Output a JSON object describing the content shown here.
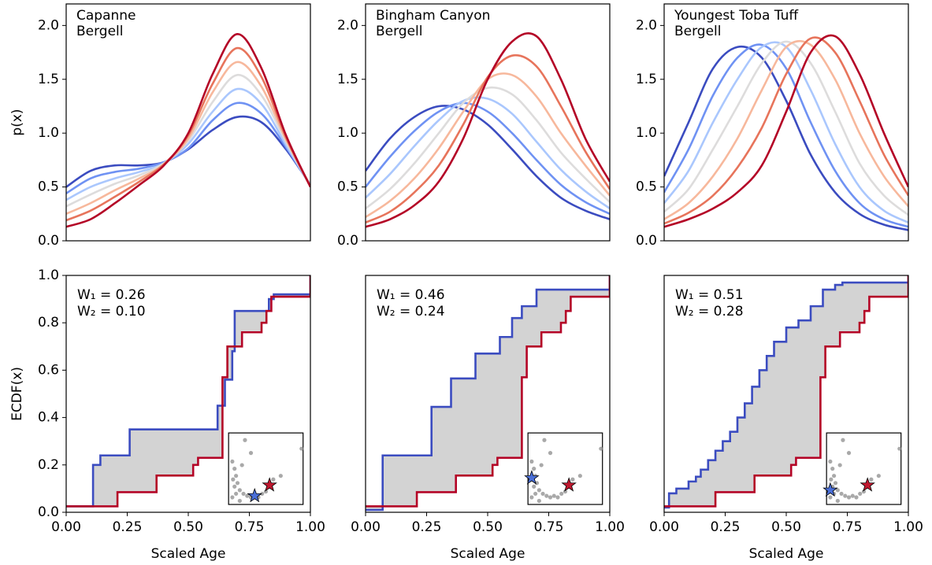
{
  "chart_data": [
    {
      "type": "line",
      "ylabel": "p(x)",
      "xlim": [
        0,
        1
      ],
      "ylim": [
        0,
        2.2
      ],
      "yticks": [
        {
          "value": 0,
          "label": "0.0"
        },
        {
          "value": 0.5,
          "label": "0.5"
        },
        {
          "value": 1,
          "label": "1.0"
        },
        {
          "value": 1.5,
          "label": "1.5"
        },
        {
          "value": 2,
          "label": "2.0"
        }
      ],
      "legend": [
        {
          "name": "Capanne",
          "color": "#3b4cc0"
        },
        {
          "name": "Bergell",
          "color": "#b40426"
        }
      ],
      "x": [
        0,
        0.1,
        0.2,
        0.3,
        0.4,
        0.5,
        0.6,
        0.7,
        0.8,
        0.9,
        1.0
      ],
      "series": [
        {
          "color": "#3b4cc0",
          "values": [
            0.5,
            0.65,
            0.7,
            0.7,
            0.73,
            0.85,
            1.03,
            1.15,
            1.1,
            0.85,
            0.52
          ]
        },
        {
          "color": "#6f92f3",
          "values": [
            0.44,
            0.58,
            0.64,
            0.67,
            0.73,
            0.86,
            1.12,
            1.28,
            1.18,
            0.87,
            0.52
          ]
        },
        {
          "color": "#aac7fd",
          "values": [
            0.38,
            0.5,
            0.58,
            0.64,
            0.72,
            0.9,
            1.2,
            1.41,
            1.27,
            0.89,
            0.51
          ]
        },
        {
          "color": "#dddcdc",
          "values": [
            0.32,
            0.43,
            0.53,
            0.61,
            0.72,
            0.93,
            1.29,
            1.54,
            1.35,
            0.92,
            0.51
          ]
        },
        {
          "color": "#f7b89c",
          "values": [
            0.25,
            0.35,
            0.47,
            0.58,
            0.71,
            0.95,
            1.38,
            1.66,
            1.43,
            0.94,
            0.51
          ]
        },
        {
          "color": "#e7745b",
          "values": [
            0.19,
            0.28,
            0.41,
            0.55,
            0.71,
            0.98,
            1.46,
            1.79,
            1.52,
            0.96,
            0.5
          ]
        },
        {
          "color": "#b40426",
          "values": [
            0.13,
            0.2,
            0.35,
            0.52,
            0.7,
            1.0,
            1.55,
            1.92,
            1.6,
            0.98,
            0.5
          ]
        }
      ]
    },
    {
      "type": "line",
      "xlim": [
        0,
        1
      ],
      "ylim": [
        0,
        2.2
      ],
      "yticks": [
        {
          "value": 0,
          "label": "0.0"
        },
        {
          "value": 0.5,
          "label": "0.5"
        },
        {
          "value": 1,
          "label": "1.0"
        },
        {
          "value": 1.5,
          "label": "1.5"
        },
        {
          "value": 2,
          "label": "2.0"
        }
      ],
      "legend": [
        {
          "name": "Bingham Canyon",
          "color": "#3b4cc0"
        },
        {
          "name": "Bergell",
          "color": "#b40426"
        }
      ],
      "x": [
        0,
        0.1,
        0.2,
        0.3,
        0.4,
        0.5,
        0.6,
        0.7,
        0.8,
        0.9,
        1.0
      ],
      "series": [
        {
          "color": "#3b4cc0",
          "values": [
            0.65,
            0.95,
            1.15,
            1.25,
            1.22,
            1.08,
            0.85,
            0.6,
            0.4,
            0.28,
            0.2
          ]
        },
        {
          "color": "#6f92f3",
          "values": [
            0.5,
            0.78,
            1.02,
            1.2,
            1.28,
            1.2,
            1.0,
            0.75,
            0.52,
            0.36,
            0.25
          ]
        },
        {
          "color": "#aac7fd",
          "values": [
            0.4,
            0.62,
            0.88,
            1.12,
            1.3,
            1.32,
            1.18,
            0.92,
            0.66,
            0.46,
            0.3
          ]
        },
        {
          "color": "#dddcdc",
          "values": [
            0.3,
            0.48,
            0.72,
            1.0,
            1.28,
            1.42,
            1.36,
            1.12,
            0.82,
            0.58,
            0.36
          ]
        },
        {
          "color": "#f7b89c",
          "values": [
            0.22,
            0.37,
            0.58,
            0.86,
            1.2,
            1.5,
            1.54,
            1.34,
            1.0,
            0.7,
            0.42
          ]
        },
        {
          "color": "#e7745b",
          "values": [
            0.17,
            0.27,
            0.45,
            0.7,
            1.08,
            1.52,
            1.72,
            1.62,
            1.25,
            0.83,
            0.48
          ]
        },
        {
          "color": "#b40426",
          "values": [
            0.13,
            0.2,
            0.33,
            0.55,
            0.95,
            1.5,
            1.85,
            1.9,
            1.5,
            0.95,
            0.55
          ]
        }
      ]
    },
    {
      "type": "line",
      "xlim": [
        0,
        1
      ],
      "ylim": [
        0,
        2.2
      ],
      "yticks": [
        {
          "value": 0,
          "label": "0.0"
        },
        {
          "value": 0.5,
          "label": "0.5"
        },
        {
          "value": 1,
          "label": "1.0"
        },
        {
          "value": 1.5,
          "label": "1.5"
        },
        {
          "value": 2,
          "label": "2.0"
        }
      ],
      "legend": [
        {
          "name": "Youngest Toba Tuff",
          "color": "#3b4cc0"
        },
        {
          "name": "Bergell",
          "color": "#b40426"
        }
      ],
      "x": [
        0,
        0.1,
        0.2,
        0.3,
        0.4,
        0.5,
        0.6,
        0.7,
        0.8,
        0.9,
        1.0
      ],
      "series": [
        {
          "color": "#3b4cc0",
          "values": [
            0.6,
            1.1,
            1.6,
            1.8,
            1.7,
            1.3,
            0.8,
            0.45,
            0.25,
            0.15,
            0.1
          ]
        },
        {
          "color": "#6f92f3",
          "values": [
            0.45,
            0.85,
            1.35,
            1.7,
            1.82,
            1.6,
            1.1,
            0.65,
            0.35,
            0.2,
            0.13
          ]
        },
        {
          "color": "#aac7fd",
          "values": [
            0.35,
            0.65,
            1.1,
            1.5,
            1.8,
            1.8,
            1.4,
            0.9,
            0.5,
            0.28,
            0.17
          ]
        },
        {
          "color": "#dddcdc",
          "values": [
            0.27,
            0.48,
            0.85,
            1.25,
            1.65,
            1.85,
            1.65,
            1.2,
            0.72,
            0.42,
            0.24
          ]
        },
        {
          "color": "#f7b89c",
          "values": [
            0.2,
            0.35,
            0.6,
            0.95,
            1.4,
            1.8,
            1.82,
            1.5,
            1.0,
            0.6,
            0.32
          ]
        },
        {
          "color": "#e7745b",
          "values": [
            0.16,
            0.26,
            0.42,
            0.68,
            1.05,
            1.55,
            1.88,
            1.75,
            1.3,
            0.8,
            0.42
          ]
        },
        {
          "color": "#b40426",
          "values": [
            0.13,
            0.2,
            0.3,
            0.45,
            0.7,
            1.2,
            1.75,
            1.9,
            1.55,
            1.0,
            0.5
          ]
        }
      ]
    },
    {
      "type": "step",
      "ylabel": "ECDF(x)",
      "xlabel": "Scaled Age",
      "xlim": [
        0,
        1
      ],
      "ylim": [
        0,
        1
      ],
      "xticks": [
        {
          "value": 0,
          "label": "0.00"
        },
        {
          "value": 0.25,
          "label": "0.25"
        },
        {
          "value": 0.5,
          "label": "0.50"
        },
        {
          "value": 0.75,
          "label": "0.75"
        },
        {
          "value": 1,
          "label": "1.00"
        }
      ],
      "yticks": [
        {
          "value": 0,
          "label": "0.0"
        },
        {
          "value": 0.2,
          "label": "0.2"
        },
        {
          "value": 0.4,
          "label": "0.4"
        },
        {
          "value": 0.6,
          "label": "0.6"
        },
        {
          "value": 0.8,
          "label": "0.8"
        },
        {
          "value": 1,
          "label": "1.0"
        }
      ],
      "annotations": [
        "W₁ = 0.26",
        "W₂ = 0.10"
      ],
      "fill_color": "#d3d3d3",
      "series": [
        {
          "color": "#3b4cc0",
          "x": [
            0,
            0.11,
            0.14,
            0.26,
            0.62,
            0.65,
            0.68,
            0.69,
            0.83,
            0.85,
            1.0
          ],
          "values": [
            0.025,
            0.2,
            0.24,
            0.35,
            0.45,
            0.56,
            0.68,
            0.85,
            0.9,
            0.92,
            1.0
          ]
        },
        {
          "color": "#b40426",
          "x": [
            0,
            0.21,
            0.37,
            0.52,
            0.54,
            0.64,
            0.66,
            0.72,
            0.8,
            0.82,
            0.84,
            1.0
          ],
          "values": [
            0.025,
            0.085,
            0.155,
            0.2,
            0.23,
            0.57,
            0.7,
            0.76,
            0.8,
            0.85,
            0.91,
            1.0
          ]
        }
      ],
      "inset": {
        "xlim": [
          0,
          1
        ],
        "ylim": [
          0,
          1
        ],
        "color": "#8c8c8c",
        "x": [
          0.05,
          0.08,
          0.1,
          0.06,
          0.12,
          0.08,
          0.15,
          0.1,
          0.2,
          0.25,
          0.3,
          0.35,
          0.4,
          0.45,
          0.5,
          0.55,
          0.6,
          0.7,
          0.98,
          0.22,
          0.3,
          0.18,
          0.05,
          0.15
        ],
        "y": [
          0.6,
          0.5,
          0.4,
          0.35,
          0.3,
          0.25,
          0.2,
          0.15,
          0.15,
          0.12,
          0.1,
          0.12,
          0.1,
          0.15,
          0.18,
          0.25,
          0.35,
          0.4,
          0.78,
          0.9,
          0.72,
          0.55,
          0.1,
          0.05
        ],
        "stars": [
          {
            "x": 0.35,
            "y": 0.12,
            "color": "#4a6fd8"
          },
          {
            "x": 0.55,
            "y": 0.27,
            "color": "#c0182f"
          }
        ]
      }
    },
    {
      "type": "step",
      "xlabel": "Scaled Age",
      "xlim": [
        0,
        1
      ],
      "ylim": [
        0,
        1
      ],
      "xticks": [
        {
          "value": 0,
          "label": "0.00"
        },
        {
          "value": 0.25,
          "label": "0.25"
        },
        {
          "value": 0.5,
          "label": "0.50"
        },
        {
          "value": 0.75,
          "label": "0.75"
        },
        {
          "value": 1,
          "label": "1.00"
        }
      ],
      "annotations": [
        "W₁ = 0.46",
        "W₂ = 0.24"
      ],
      "fill_color": "#d3d3d3",
      "series": [
        {
          "color": "#3b4cc0",
          "x": [
            0,
            0.07,
            0.27,
            0.35,
            0.45,
            0.55,
            0.6,
            0.64,
            0.7,
            1.0
          ],
          "values": [
            0.01,
            0.24,
            0.445,
            0.565,
            0.67,
            0.74,
            0.82,
            0.87,
            0.94,
            1.0
          ]
        },
        {
          "color": "#b40426",
          "x": [
            0,
            0.21,
            0.37,
            0.52,
            0.54,
            0.64,
            0.66,
            0.72,
            0.8,
            0.82,
            0.84,
            1.0
          ],
          "values": [
            0.025,
            0.085,
            0.155,
            0.2,
            0.23,
            0.57,
            0.7,
            0.76,
            0.8,
            0.85,
            0.91,
            1.0
          ]
        }
      ],
      "inset": {
        "xlim": [
          0,
          1
        ],
        "ylim": [
          0,
          1
        ],
        "color": "#8c8c8c",
        "x": [
          0.05,
          0.08,
          0.1,
          0.06,
          0.12,
          0.08,
          0.15,
          0.1,
          0.2,
          0.25,
          0.3,
          0.35,
          0.4,
          0.45,
          0.5,
          0.55,
          0.6,
          0.7,
          0.98,
          0.22,
          0.3,
          0.18,
          0.05,
          0.15
        ],
        "y": [
          0.6,
          0.5,
          0.4,
          0.35,
          0.3,
          0.25,
          0.2,
          0.15,
          0.15,
          0.12,
          0.1,
          0.12,
          0.1,
          0.15,
          0.18,
          0.25,
          0.35,
          0.4,
          0.78,
          0.9,
          0.72,
          0.55,
          0.1,
          0.05
        ],
        "stars": [
          {
            "x": 0.05,
            "y": 0.37,
            "color": "#4a6fd8"
          },
          {
            "x": 0.55,
            "y": 0.27,
            "color": "#c0182f"
          }
        ]
      }
    },
    {
      "type": "step",
      "xlabel": "Scaled Age",
      "xlim": [
        0,
        1
      ],
      "ylim": [
        0,
        1
      ],
      "xticks": [
        {
          "value": 0,
          "label": "0.00"
        },
        {
          "value": 0.25,
          "label": "0.25"
        },
        {
          "value": 0.5,
          "label": "0.50"
        },
        {
          "value": 0.75,
          "label": "0.75"
        },
        {
          "value": 1,
          "label": "1.00"
        }
      ],
      "annotations": [
        "W₁ = 0.51",
        "W₂ = 0.28"
      ],
      "fill_color": "#d3d3d3",
      "series": [
        {
          "color": "#3b4cc0",
          "x": [
            0,
            0.02,
            0.05,
            0.1,
            0.13,
            0.15,
            0.18,
            0.21,
            0.24,
            0.27,
            0.3,
            0.33,
            0.36,
            0.39,
            0.42,
            0.45,
            0.5,
            0.55,
            0.6,
            0.65,
            0.7,
            0.73,
            1.0
          ],
          "values": [
            0.02,
            0.08,
            0.1,
            0.13,
            0.15,
            0.18,
            0.22,
            0.26,
            0.3,
            0.34,
            0.4,
            0.46,
            0.53,
            0.6,
            0.66,
            0.72,
            0.78,
            0.81,
            0.87,
            0.94,
            0.96,
            0.97,
            1.0
          ]
        },
        {
          "color": "#b40426",
          "x": [
            0,
            0.21,
            0.37,
            0.52,
            0.54,
            0.64,
            0.66,
            0.72,
            0.8,
            0.82,
            0.84,
            1.0
          ],
          "values": [
            0.025,
            0.085,
            0.155,
            0.2,
            0.23,
            0.57,
            0.7,
            0.76,
            0.8,
            0.85,
            0.91,
            1.0
          ]
        }
      ],
      "inset": {
        "xlim": [
          0,
          1
        ],
        "ylim": [
          0,
          1
        ],
        "color": "#8c8c8c",
        "x": [
          0.05,
          0.08,
          0.1,
          0.06,
          0.12,
          0.08,
          0.15,
          0.1,
          0.2,
          0.25,
          0.3,
          0.35,
          0.4,
          0.45,
          0.5,
          0.55,
          0.6,
          0.7,
          0.98,
          0.22,
          0.3,
          0.18,
          0.05,
          0.15
        ],
        "y": [
          0.6,
          0.5,
          0.4,
          0.35,
          0.3,
          0.25,
          0.2,
          0.15,
          0.15,
          0.12,
          0.1,
          0.12,
          0.1,
          0.15,
          0.18,
          0.25,
          0.35,
          0.4,
          0.78,
          0.9,
          0.72,
          0.55,
          0.1,
          0.05
        ],
        "stars": [
          {
            "x": 0.05,
            "y": 0.2,
            "color": "#4a6fd8"
          },
          {
            "x": 0.55,
            "y": 0.27,
            "color": "#c0182f"
          }
        ]
      }
    }
  ]
}
